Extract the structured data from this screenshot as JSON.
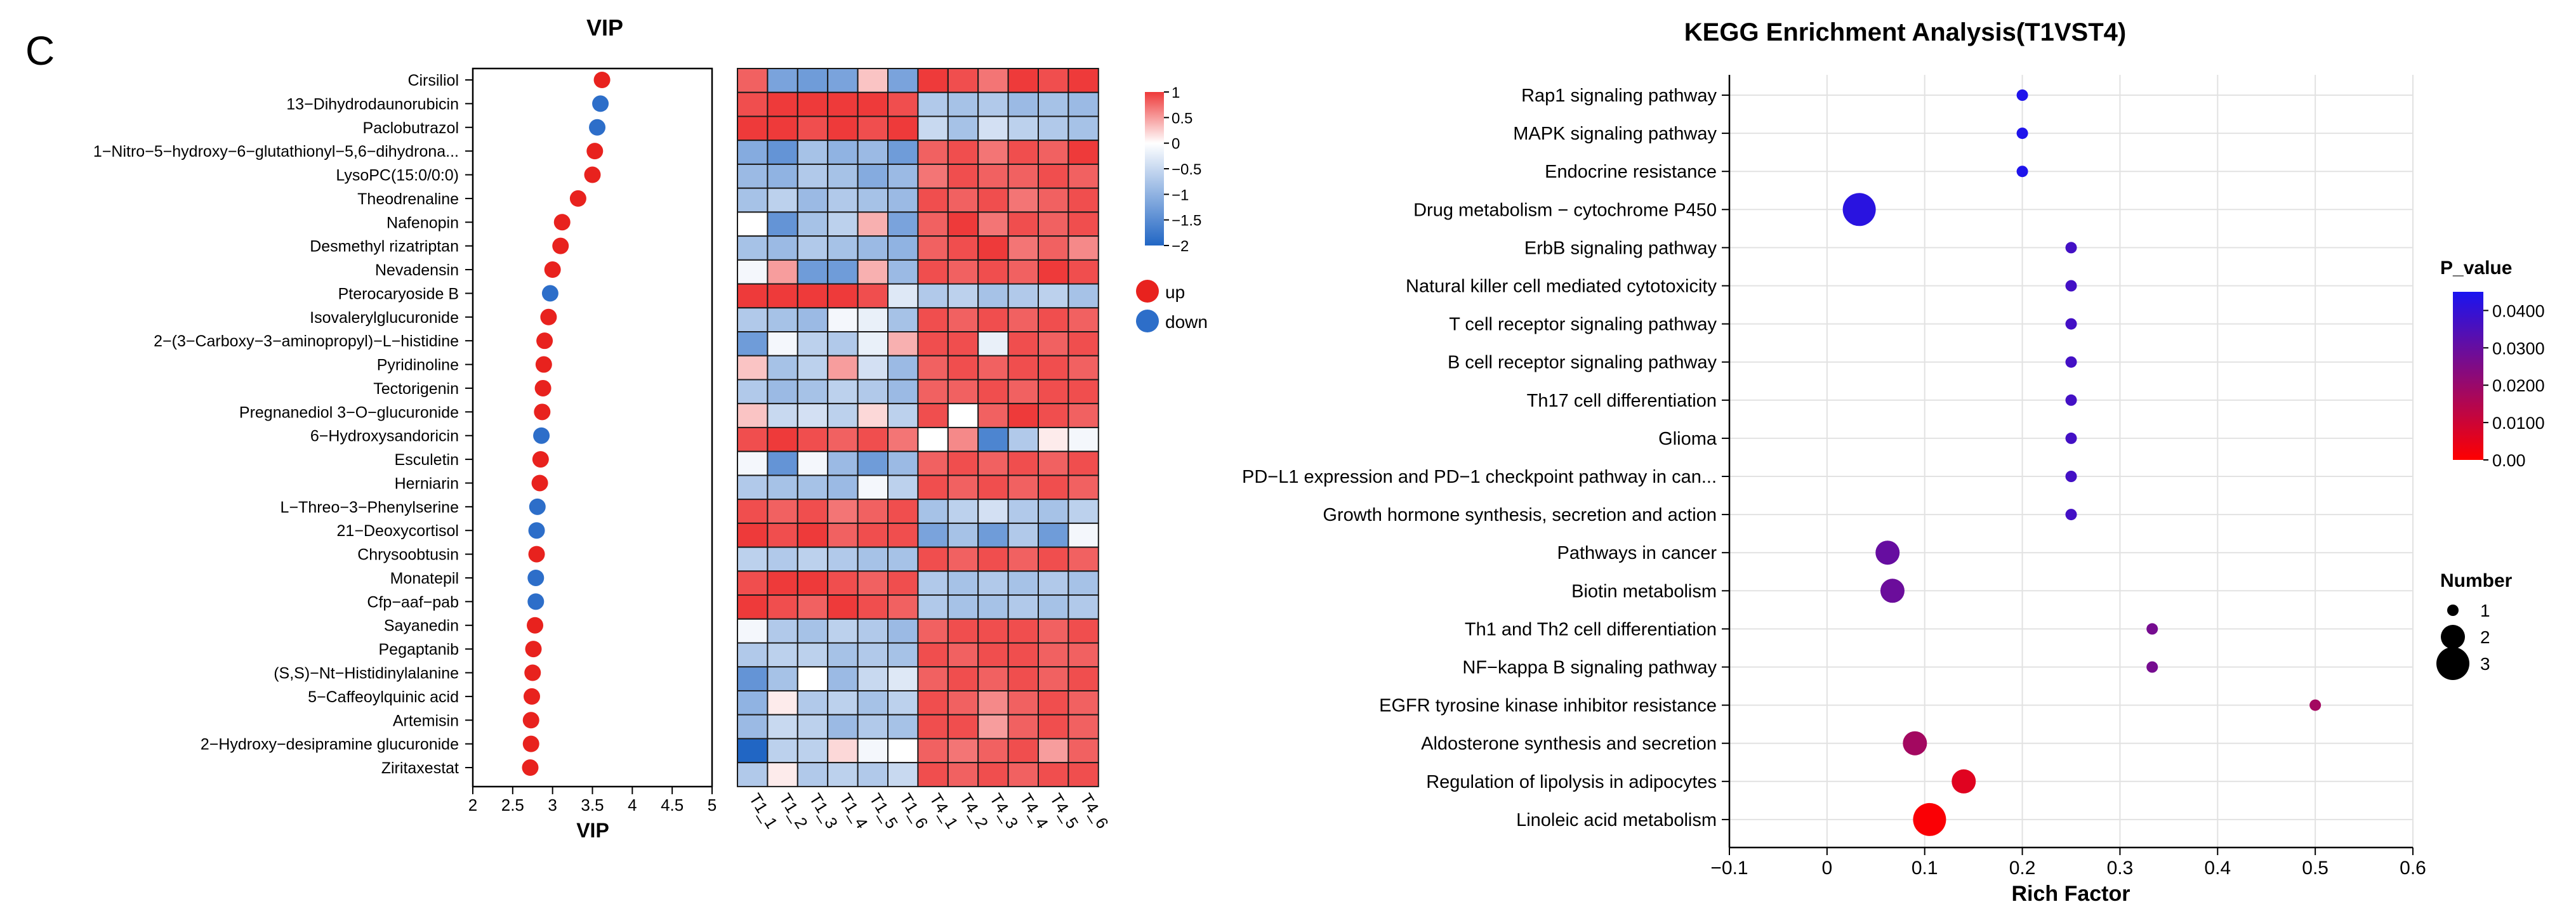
{
  "panel_label": "C",
  "chart_data": [
    {
      "type": "scatter",
      "title": "VIP",
      "xlabel": "VIP",
      "ylabel": "",
      "xlim": [
        2,
        5
      ],
      "xticks": [
        "2",
        "2.5",
        "3",
        "3.5",
        "4",
        "4.5",
        "5"
      ],
      "legend": [
        {
          "label": "up",
          "color": "#e8221e"
        },
        {
          "label": "down",
          "color": "#2d6ec9"
        }
      ],
      "metabolites": [
        {
          "name": "Cirsiliol",
          "vip": 3.62,
          "dir": "up"
        },
        {
          "name": "13−Dihydrodaunorubicin",
          "vip": 3.6,
          "dir": "down"
        },
        {
          "name": "Paclobutrazol",
          "vip": 3.56,
          "dir": "down"
        },
        {
          "name": "1−Nitro−5−hydroxy−6−glutathionyl−5,6−dihydrona...",
          "vip": 3.53,
          "dir": "up"
        },
        {
          "name": "LysoPC(15:0/0:0)",
          "vip": 3.5,
          "dir": "up"
        },
        {
          "name": "Theodrenaline",
          "vip": 3.32,
          "dir": "up"
        },
        {
          "name": "Nafenopin",
          "vip": 3.12,
          "dir": "up"
        },
        {
          "name": "Desmethyl rizatriptan",
          "vip": 3.1,
          "dir": "up"
        },
        {
          "name": "Nevadensin",
          "vip": 3.0,
          "dir": "up"
        },
        {
          "name": "Pterocaryoside B",
          "vip": 2.97,
          "dir": "down"
        },
        {
          "name": "Isovalerylglucuronide",
          "vip": 2.95,
          "dir": "up"
        },
        {
          "name": "2−(3−Carboxy−3−aminopropyl)−L−histidine",
          "vip": 2.9,
          "dir": "up"
        },
        {
          "name": "Pyridinoline",
          "vip": 2.89,
          "dir": "up"
        },
        {
          "name": "Tectorigenin",
          "vip": 2.88,
          "dir": "up"
        },
        {
          "name": "Pregnanediol 3−O−glucuronide",
          "vip": 2.87,
          "dir": "up"
        },
        {
          "name": "6−Hydroxysandoricin",
          "vip": 2.86,
          "dir": "down"
        },
        {
          "name": "Esculetin",
          "vip": 2.85,
          "dir": "up"
        },
        {
          "name": "Herniarin",
          "vip": 2.84,
          "dir": "up"
        },
        {
          "name": "L−Threo−3−Phenylserine",
          "vip": 2.81,
          "dir": "down"
        },
        {
          "name": "21−Deoxycortisol",
          "vip": 2.8,
          "dir": "down"
        },
        {
          "name": "Chrysoobtusin",
          "vip": 2.8,
          "dir": "up"
        },
        {
          "name": "Monatepil",
          "vip": 2.79,
          "dir": "down"
        },
        {
          "name": "Cfp−aaf−pab",
          "vip": 2.79,
          "dir": "down"
        },
        {
          "name": "Sayanedin",
          "vip": 2.78,
          "dir": "up"
        },
        {
          "name": "Pegaptanib",
          "vip": 2.76,
          "dir": "up"
        },
        {
          "name": "(S,S)−Nt−Histidinylalanine",
          "vip": 2.75,
          "dir": "up"
        },
        {
          "name": "5−Caffeoylquinic acid",
          "vip": 2.74,
          "dir": "up"
        },
        {
          "name": "Artemisin",
          "vip": 2.73,
          "dir": "up"
        },
        {
          "name": "2−Hydroxy−desipramine glucuronide",
          "vip": 2.73,
          "dir": "up"
        },
        {
          "name": "Ziritaxestat",
          "vip": 2.72,
          "dir": "up"
        }
      ]
    },
    {
      "type": "heatmap",
      "columns": [
        "T1_1",
        "T1_2",
        "T1_3",
        "T1_4",
        "T1_5",
        "T1_6",
        "T4_1",
        "T4_2",
        "T4_3",
        "T4_4",
        "T4_5",
        "T4_6"
      ],
      "colorbar": {
        "range": [
          -2,
          1
        ],
        "ticks": [
          "1",
          "0.5",
          "0",
          "−0.5",
          "−1",
          "−1.5",
          "−2"
        ],
        "colors": [
          "#2166c4",
          "#ffffff",
          "#ee3a3a"
        ]
      },
      "values": [
        [
          0.8,
          -1.2,
          -1.3,
          -1.2,
          0.3,
          -1.2,
          1.0,
          0.9,
          0.7,
          1.0,
          0.9,
          1.0
        ],
        [
          0.9,
          1.0,
          1.2,
          1.0,
          1.1,
          0.9,
          -0.7,
          -0.8,
          -0.7,
          -0.9,
          -0.8,
          -0.9
        ],
        [
          1.0,
          1.1,
          0.9,
          1.0,
          0.9,
          1.0,
          -0.5,
          -0.8,
          -0.4,
          -0.6,
          -0.7,
          -0.8
        ],
        [
          -1.1,
          -1.4,
          -0.8,
          -1.0,
          -0.9,
          -1.3,
          0.8,
          0.9,
          0.7,
          0.9,
          0.8,
          1.0
        ],
        [
          -0.9,
          -1.0,
          -0.7,
          -0.8,
          -1.1,
          -0.9,
          0.7,
          0.9,
          0.8,
          0.8,
          0.9,
          0.8
        ],
        [
          -0.8,
          -0.6,
          -0.9,
          -0.7,
          -0.8,
          -0.9,
          0.9,
          0.8,
          0.9,
          0.7,
          0.8,
          0.9
        ],
        [
          0.0,
          -1.4,
          -0.8,
          -0.6,
          0.4,
          -1.2,
          0.8,
          1.0,
          0.7,
          0.9,
          0.8,
          0.9
        ],
        [
          -0.8,
          -0.9,
          -0.7,
          -0.8,
          -0.9,
          -1.0,
          0.8,
          0.9,
          1.0,
          0.7,
          0.8,
          0.6
        ],
        [
          -0.1,
          0.5,
          -1.3,
          -1.3,
          0.4,
          -0.9,
          0.9,
          0.8,
          0.9,
          0.8,
          1.0,
          0.9
        ],
        [
          1.1,
          1.2,
          1.0,
          1.1,
          0.9,
          -0.3,
          -0.7,
          -0.6,
          -0.8,
          -0.7,
          -0.6,
          -0.8
        ],
        [
          -0.7,
          -0.8,
          -0.9,
          -0.1,
          -0.2,
          -0.8,
          0.9,
          0.8,
          0.9,
          0.8,
          0.9,
          0.8
        ],
        [
          -1.3,
          -0.1,
          -0.6,
          -0.7,
          -0.2,
          0.4,
          0.9,
          0.9,
          -0.2,
          0.9,
          0.8,
          0.9
        ],
        [
          0.3,
          -0.8,
          -0.6,
          0.5,
          -0.4,
          -0.9,
          0.8,
          0.9,
          0.8,
          0.9,
          0.9,
          0.8
        ],
        [
          -0.7,
          -0.9,
          -0.8,
          -0.6,
          -0.7,
          -0.9,
          0.8,
          0.8,
          0.9,
          0.8,
          0.9,
          0.9
        ],
        [
          0.3,
          -0.5,
          -0.4,
          -0.6,
          0.2,
          -0.6,
          0.9,
          0.0,
          0.8,
          1.0,
          0.9,
          0.8
        ],
        [
          0.9,
          1.0,
          0.9,
          0.8,
          0.9,
          0.7,
          0.0,
          0.6,
          -1.6,
          -0.7,
          0.1,
          -0.1
        ],
        [
          -0.1,
          -1.4,
          -0.1,
          -0.9,
          -1.3,
          -0.9,
          0.8,
          0.9,
          0.8,
          0.9,
          0.8,
          0.9
        ],
        [
          -0.7,
          -0.8,
          -0.8,
          -0.9,
          -0.1,
          -0.6,
          0.9,
          0.8,
          0.9,
          0.8,
          0.9,
          0.8
        ],
        [
          0.9,
          0.8,
          0.9,
          0.7,
          0.8,
          0.9,
          -0.8,
          -0.6,
          -0.4,
          -0.7,
          -0.8,
          -0.6
        ],
        [
          1.0,
          0.9,
          1.0,
          0.8,
          0.9,
          0.9,
          -1.2,
          -0.8,
          -1.3,
          -0.7,
          -1.3,
          -0.1
        ],
        [
          -0.6,
          -0.7,
          -0.6,
          -0.7,
          -0.8,
          -0.8,
          0.9,
          0.8,
          0.9,
          0.8,
          0.9,
          0.8
        ],
        [
          0.9,
          1.0,
          1.1,
          0.9,
          0.8,
          0.9,
          -0.7,
          -0.8,
          -0.7,
          -0.8,
          -0.7,
          -0.8
        ],
        [
          1.0,
          0.9,
          0.8,
          1.0,
          0.9,
          0.8,
          -0.7,
          -0.8,
          -0.8,
          -0.7,
          -0.8,
          -0.7
        ],
        [
          -0.1,
          -0.7,
          -0.8,
          -0.6,
          -0.7,
          -0.9,
          0.8,
          0.9,
          0.9,
          0.9,
          0.8,
          0.9
        ],
        [
          -0.7,
          -0.6,
          -0.6,
          -0.8,
          -0.7,
          -0.8,
          0.9,
          0.8,
          0.9,
          0.9,
          0.8,
          0.8
        ],
        [
          -1.4,
          -0.8,
          0.0,
          -0.9,
          -0.5,
          -0.3,
          0.8,
          0.9,
          0.8,
          0.9,
          0.8,
          0.9
        ],
        [
          -1.0,
          0.1,
          -0.7,
          -0.6,
          -0.8,
          -0.6,
          0.9,
          0.8,
          0.6,
          0.8,
          0.9,
          0.8
        ],
        [
          -0.9,
          -0.5,
          -0.6,
          -0.9,
          -0.7,
          -0.8,
          0.9,
          0.9,
          0.5,
          0.8,
          0.9,
          0.8
        ],
        [
          -2.0,
          -0.6,
          -0.6,
          0.2,
          -0.1,
          0.0,
          0.8,
          0.7,
          0.8,
          0.9,
          0.5,
          0.8
        ],
        [
          -0.7,
          0.1,
          -0.7,
          -0.6,
          -0.7,
          -0.5,
          0.9,
          0.8,
          0.9,
          0.8,
          0.9,
          0.9
        ]
      ]
    },
    {
      "type": "scatter",
      "title": "KEGG Enrichment Analysis(T1VST4)",
      "xlabel": "Rich Factor",
      "ylabel": "",
      "xlim": [
        -0.1,
        0.6
      ],
      "xticks": [
        "−0.1",
        "0",
        "0.1",
        "0.2",
        "0.3",
        "0.4",
        "0.5",
        "0.6"
      ],
      "color_legend": {
        "title": "P_value",
        "ticks": [
          "0.0400",
          "0.0300",
          "0.0200",
          "0.0100",
          "0.00"
        ],
        "range": [
          0,
          0.045
        ],
        "low_color": "#ff0000",
        "high_color": "#1a14f0"
      },
      "size_legend": {
        "title": "Number",
        "entries": [
          {
            "label": "1",
            "value": 1
          },
          {
            "label": "2",
            "value": 2
          },
          {
            "label": "3",
            "value": 3
          }
        ]
      },
      "pathways": [
        {
          "name": "Rap1 signaling pathway",
          "rich": 0.2,
          "p": 0.044,
          "n": 1
        },
        {
          "name": "MAPK signaling pathway",
          "rich": 0.2,
          "p": 0.044,
          "n": 1
        },
        {
          "name": "Endocrine resistance",
          "rich": 0.2,
          "p": 0.044,
          "n": 1
        },
        {
          "name": "Drug metabolism − cytochrome P450",
          "rich": 0.033,
          "p": 0.042,
          "n": 3
        },
        {
          "name": "ErbB signaling pathway",
          "rich": 0.25,
          "p": 0.037,
          "n": 1
        },
        {
          "name": "Natural killer cell mediated cytotoxicity",
          "rich": 0.25,
          "p": 0.037,
          "n": 1
        },
        {
          "name": "T cell receptor signaling pathway",
          "rich": 0.25,
          "p": 0.037,
          "n": 1
        },
        {
          "name": "B cell receptor signaling pathway",
          "rich": 0.25,
          "p": 0.037,
          "n": 1
        },
        {
          "name": "Th17 cell differentiation",
          "rich": 0.25,
          "p": 0.037,
          "n": 1
        },
        {
          "name": "Glioma",
          "rich": 0.25,
          "p": 0.037,
          "n": 1
        },
        {
          "name": "PD−L1 expression and PD−1 checkpoint pathway in can...",
          "rich": 0.25,
          "p": 0.037,
          "n": 1
        },
        {
          "name": "Growth hormone synthesis, secretion and action",
          "rich": 0.25,
          "p": 0.037,
          "n": 1
        },
        {
          "name": "Pathways in cancer",
          "rich": 0.062,
          "p": 0.03,
          "n": 2
        },
        {
          "name": "Biotin metabolism",
          "rich": 0.067,
          "p": 0.029,
          "n": 2
        },
        {
          "name": "Th1 and Th2 cell differentiation",
          "rich": 0.333,
          "p": 0.027,
          "n": 1
        },
        {
          "name": "NF−kappa B signaling pathway",
          "rich": 0.333,
          "p": 0.027,
          "n": 1
        },
        {
          "name": "EGFR tyrosine kinase inhibitor resistance",
          "rich": 0.5,
          "p": 0.018,
          "n": 1
        },
        {
          "name": "Aldosterone synthesis and secretion",
          "rich": 0.09,
          "p": 0.018,
          "n": 2
        },
        {
          "name": "Regulation of lipolysis in adipocytes",
          "rich": 0.14,
          "p": 0.006,
          "n": 2
        },
        {
          "name": "Linoleic acid metabolism",
          "rich": 0.105,
          "p": 0.001,
          "n": 3
        }
      ]
    }
  ]
}
